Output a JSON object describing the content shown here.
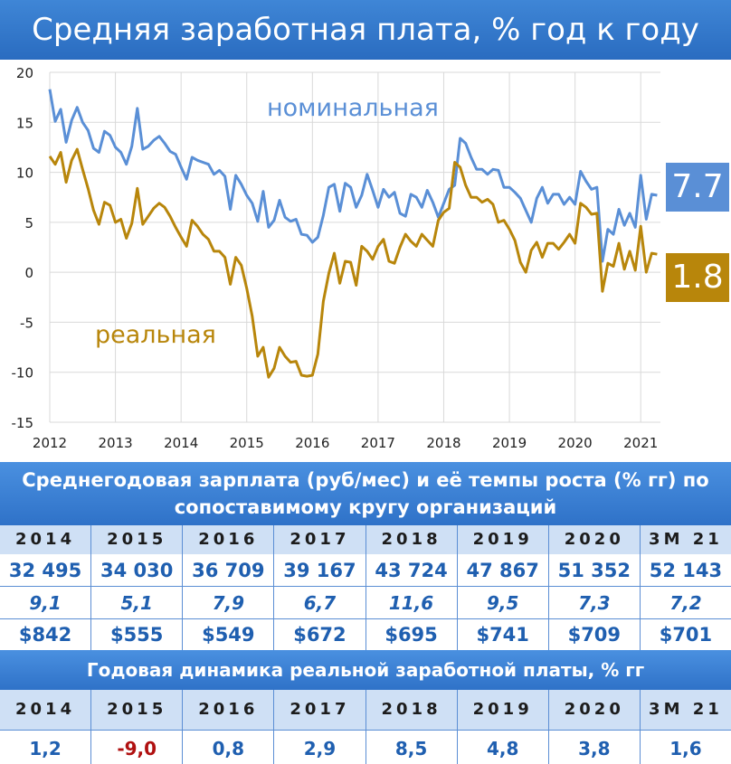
{
  "title": "Средняя заработная плата, % год к году",
  "chart_data": {
    "type": "line",
    "title": "Средняя заработная плата, % год к году",
    "xlabel": "",
    "ylabel": "",
    "xlim": [
      2012,
      2021.3
    ],
    "ylim": [
      -15,
      20
    ],
    "yticks": [
      20,
      15,
      10,
      5,
      0,
      -5,
      -10,
      -15
    ],
    "xticks": [
      2012,
      2013,
      2014,
      2015,
      2016,
      2017,
      2018,
      2019,
      2020,
      2021
    ],
    "grid": true,
    "series": [
      {
        "name": "номинальная",
        "color": "#5a8fd6",
        "x": [
          2012.0,
          2012.083,
          2012.167,
          2012.25,
          2012.333,
          2012.417,
          2012.5,
          2012.583,
          2012.667,
          2012.75,
          2012.833,
          2012.917,
          2013.0,
          2013.083,
          2013.167,
          2013.25,
          2013.333,
          2013.417,
          2013.5,
          2013.583,
          2013.667,
          2013.75,
          2013.833,
          2013.917,
          2014.0,
          2014.083,
          2014.167,
          2014.25,
          2014.333,
          2014.417,
          2014.5,
          2014.583,
          2014.667,
          2014.75,
          2014.833,
          2014.917,
          2015.0,
          2015.083,
          2015.167,
          2015.25,
          2015.333,
          2015.417,
          2015.5,
          2015.583,
          2015.667,
          2015.75,
          2015.833,
          2015.917,
          2016.0,
          2016.083,
          2016.167,
          2016.25,
          2016.333,
          2016.417,
          2016.5,
          2016.583,
          2016.667,
          2016.75,
          2016.833,
          2016.917,
          2017.0,
          2017.083,
          2017.167,
          2017.25,
          2017.333,
          2017.417,
          2017.5,
          2017.583,
          2017.667,
          2017.75,
          2017.833,
          2017.917,
          2018.0,
          2018.083,
          2018.167,
          2018.25,
          2018.333,
          2018.417,
          2018.5,
          2018.583,
          2018.667,
          2018.75,
          2018.833,
          2018.917,
          2019.0,
          2019.083,
          2019.167,
          2019.25,
          2019.333,
          2019.417,
          2019.5,
          2019.583,
          2019.667,
          2019.75,
          2019.833,
          2019.917,
          2020.0,
          2020.083,
          2020.167,
          2020.25,
          2020.333,
          2020.417,
          2020.5,
          2020.583,
          2020.667,
          2020.75,
          2020.833,
          2020.917,
          2021.0,
          2021.083,
          2021.167,
          2021.25
        ],
        "y": [
          18.3,
          15.1,
          16.3,
          13.0,
          15.2,
          16.5,
          15.0,
          14.2,
          12.4,
          12.0,
          14.1,
          13.7,
          12.5,
          12.0,
          10.8,
          12.6,
          16.4,
          12.3,
          12.6,
          13.2,
          13.6,
          12.9,
          12.1,
          11.8,
          10.5,
          9.3,
          11.5,
          11.2,
          11.0,
          10.8,
          9.8,
          10.2,
          9.6,
          6.3,
          9.7,
          8.8,
          7.7,
          6.9,
          5.1,
          8.1,
          4.5,
          5.2,
          7.2,
          5.5,
          5.1,
          5.3,
          3.8,
          3.7,
          3.0,
          3.5,
          5.7,
          8.5,
          8.8,
          6.1,
          8.9,
          8.5,
          6.5,
          7.7,
          9.8,
          8.2,
          6.5,
          8.3,
          7.5,
          8.0,
          5.9,
          5.6,
          7.8,
          7.5,
          6.5,
          8.2,
          7.0,
          5.5,
          6.9,
          8.3,
          8.7,
          13.4,
          12.9,
          11.5,
          10.3,
          10.3,
          9.8,
          10.3,
          10.2,
          8.5,
          8.5,
          8.0,
          7.4,
          6.2,
          5.0,
          7.4,
          8.5,
          6.9,
          7.8,
          7.8,
          6.8,
          7.5,
          6.8,
          10.1,
          9.1,
          8.3,
          8.5,
          1.1,
          4.3,
          3.8,
          6.3,
          4.7,
          5.9,
          4.5,
          9.7,
          5.3,
          7.8,
          7.7
        ]
      },
      {
        "name": "реальная",
        "color": "#b8860b",
        "x": [
          2012.0,
          2012.083,
          2012.167,
          2012.25,
          2012.333,
          2012.417,
          2012.5,
          2012.583,
          2012.667,
          2012.75,
          2012.833,
          2012.917,
          2013.0,
          2013.083,
          2013.167,
          2013.25,
          2013.333,
          2013.417,
          2013.5,
          2013.583,
          2013.667,
          2013.75,
          2013.833,
          2013.917,
          2014.0,
          2014.083,
          2014.167,
          2014.25,
          2014.333,
          2014.417,
          2014.5,
          2014.583,
          2014.667,
          2014.75,
          2014.833,
          2014.917,
          2015.0,
          2015.083,
          2015.167,
          2015.25,
          2015.333,
          2015.417,
          2015.5,
          2015.583,
          2015.667,
          2015.75,
          2015.833,
          2015.917,
          2016.0,
          2016.083,
          2016.167,
          2016.25,
          2016.333,
          2016.417,
          2016.5,
          2016.583,
          2016.667,
          2016.75,
          2016.833,
          2016.917,
          2017.0,
          2017.083,
          2017.167,
          2017.25,
          2017.333,
          2017.417,
          2017.5,
          2017.583,
          2017.667,
          2017.75,
          2017.833,
          2017.917,
          2018.0,
          2018.083,
          2018.167,
          2018.25,
          2018.333,
          2018.417,
          2018.5,
          2018.583,
          2018.667,
          2018.75,
          2018.833,
          2018.917,
          2019.0,
          2019.083,
          2019.167,
          2019.25,
          2019.333,
          2019.417,
          2019.5,
          2019.583,
          2019.667,
          2019.75,
          2019.833,
          2019.917,
          2020.0,
          2020.083,
          2020.167,
          2020.25,
          2020.333,
          2020.417,
          2020.5,
          2020.583,
          2020.667,
          2020.75,
          2020.833,
          2020.917,
          2021.0,
          2021.083,
          2021.167,
          2021.25
        ],
        "y": [
          11.6,
          10.8,
          12.0,
          9.0,
          11.2,
          12.3,
          10.3,
          8.4,
          6.2,
          4.8,
          7.0,
          6.7,
          5.0,
          5.3,
          3.4,
          4.9,
          8.4,
          4.8,
          5.6,
          6.4,
          6.9,
          6.5,
          5.6,
          4.5,
          3.5,
          2.6,
          5.2,
          4.6,
          3.8,
          3.3,
          2.1,
          2.1,
          1.5,
          -1.2,
          1.5,
          0.7,
          -1.6,
          -4.4,
          -8.4,
          -7.5,
          -10.5,
          -9.6,
          -7.5,
          -8.4,
          -9.0,
          -8.9,
          -10.3,
          -10.4,
          -10.3,
          -8.2,
          -2.9,
          -0.1,
          1.9,
          -1.1,
          1.1,
          1.0,
          -1.3,
          2.6,
          2.1,
          1.3,
          2.6,
          3.3,
          1.1,
          0.9,
          2.5,
          3.8,
          3.1,
          2.6,
          3.8,
          3.2,
          2.6,
          5.2,
          6.0,
          6.4,
          11.0,
          10.5,
          8.7,
          7.5,
          7.5,
          7.0,
          7.3,
          6.8,
          5.0,
          5.2,
          4.3,
          3.2,
          1.0,
          0.0,
          2.2,
          3.0,
          1.5,
          2.9,
          2.9,
          2.3,
          3.0,
          3.8,
          2.9,
          6.9,
          6.5,
          5.8,
          5.9,
          -1.9,
          0.9,
          0.6,
          2.9,
          0.3,
          2.1,
          0.2,
          4.6,
          0.0,
          1.9,
          1.8
        ]
      }
    ],
    "annotations": [
      {
        "text": "номинальная",
        "color": "#5a8fd6"
      },
      {
        "text": "реальная",
        "color": "#b8860b"
      }
    ]
  },
  "badges": {
    "nominal_last": "7.7",
    "real_last": "1.8"
  },
  "table1": {
    "title": "Среднегодовая зарплата (руб/мес) и её темпы роста (% гг)  по сопоставимому кругу организаций",
    "years": [
      "2014",
      "2015",
      "2016",
      "2017",
      "2018",
      "2019",
      "2020",
      "3M 21"
    ],
    "rub": [
      "32 495",
      "34 030",
      "36 709",
      "39 167",
      "43 724",
      "47 867",
      "51 352",
      "52 143"
    ],
    "growth": [
      "9,1",
      "5,1",
      "7,9",
      "6,7",
      "11,6",
      "9,5",
      "7,3",
      "7,2"
    ],
    "usd": [
      "$842",
      "$555",
      "$549",
      "$672",
      "$695",
      "$741",
      "$709",
      "$701"
    ]
  },
  "table2": {
    "title": "Годовая динамика реальной заработной платы, % гг",
    "years": [
      "2014",
      "2015",
      "2016",
      "2017",
      "2018",
      "2019",
      "2020",
      "3M 21"
    ],
    "values": [
      "1,2",
      "-9,0",
      "0,8",
      "2,9",
      "8,5",
      "4,8",
      "3,8",
      "1,6"
    ]
  }
}
